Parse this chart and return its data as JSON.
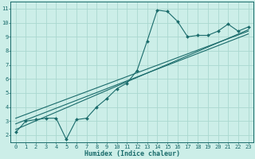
{
  "xlabel": "Humidex (Indice chaleur)",
  "bg_color": "#cceee8",
  "grid_color": "#aad8d0",
  "line_color": "#1a6b6b",
  "xlim": [
    -0.5,
    23.5
  ],
  "ylim": [
    1.5,
    11.5
  ],
  "xticks": [
    0,
    1,
    2,
    3,
    4,
    5,
    6,
    7,
    8,
    9,
    10,
    11,
    12,
    13,
    14,
    15,
    16,
    17,
    18,
    19,
    20,
    21,
    22,
    23
  ],
  "yticks": [
    2,
    3,
    4,
    5,
    6,
    7,
    8,
    9,
    10,
    11
  ],
  "curve1_x": [
    0,
    1,
    2,
    3,
    4,
    5,
    6,
    7,
    8,
    9,
    10,
    11,
    12,
    13,
    14,
    15,
    16,
    17,
    18,
    19,
    20,
    21,
    22,
    23
  ],
  "curve1_y": [
    2.2,
    3.0,
    3.1,
    3.2,
    3.2,
    1.7,
    3.1,
    3.2,
    4.0,
    4.6,
    5.3,
    5.7,
    6.6,
    8.7,
    10.9,
    10.8,
    10.1,
    9.0,
    9.1,
    9.1,
    9.4,
    9.9,
    9.4,
    9.7
  ],
  "line1_x": [
    0,
    23
  ],
  "line1_y": [
    2.4,
    9.5
  ],
  "line2_x": [
    0,
    23
  ],
  "line2_y": [
    2.8,
    9.2
  ],
  "line3_x": [
    0,
    23
  ],
  "line3_y": [
    3.2,
    9.4
  ],
  "tick_fontsize": 5.0,
  "xlabel_fontsize": 6.0
}
